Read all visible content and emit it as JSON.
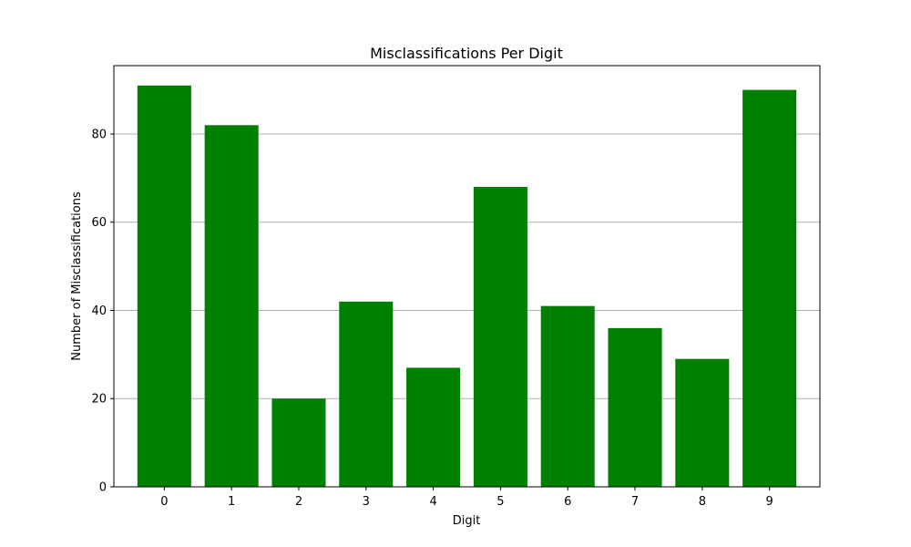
{
  "chart_data": {
    "type": "bar",
    "title": "Misclassifications Per Digit",
    "xlabel": "Digit",
    "ylabel": "Number of Misclassifications",
    "categories": [
      "0",
      "1",
      "2",
      "3",
      "4",
      "5",
      "6",
      "7",
      "8",
      "9"
    ],
    "values": [
      91,
      82,
      20,
      42,
      27,
      68,
      41,
      36,
      29,
      90
    ],
    "ylim": [
      0,
      95.5
    ],
    "yticks": [
      0,
      20,
      40,
      60,
      80
    ],
    "grid": {
      "y": true,
      "x": false
    },
    "bar_color": "#008000",
    "grid_color": "#b0b0b0"
  }
}
